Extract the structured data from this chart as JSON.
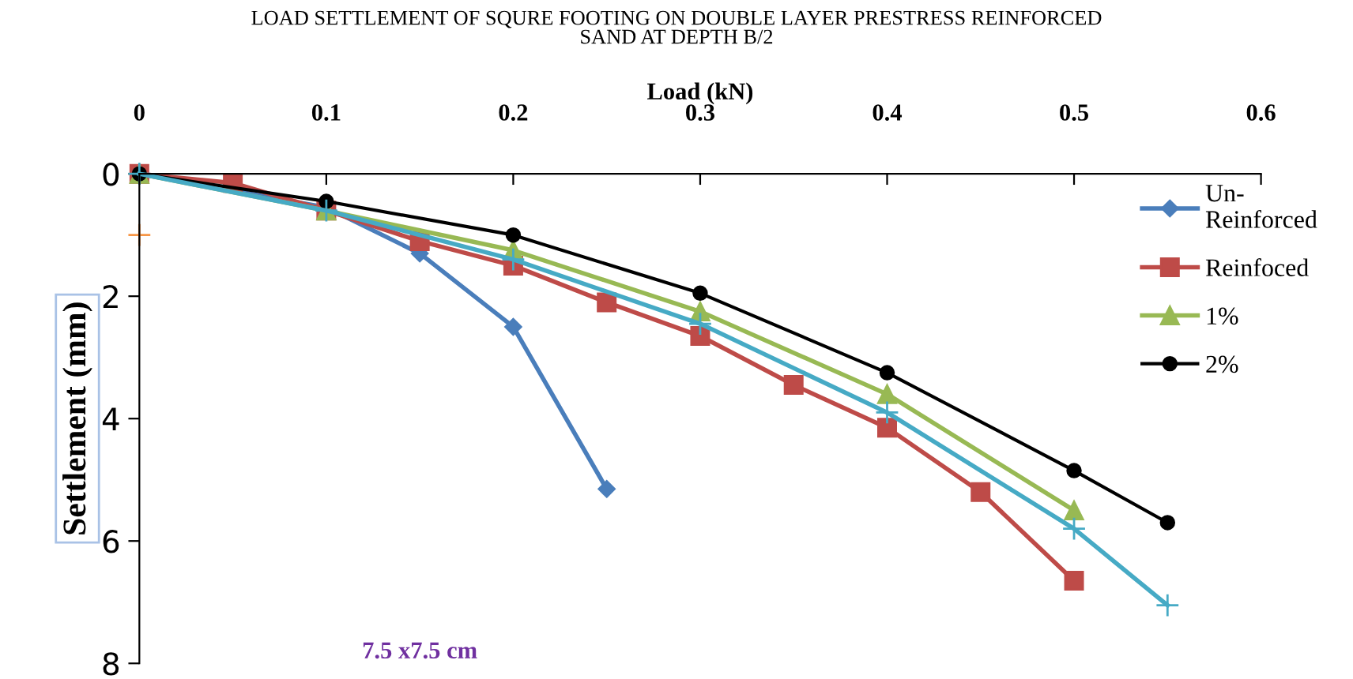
{
  "chart_data": {
    "type": "line",
    "title": "LOAD SETTLEMENT OF SQURE FOOTING ON DOUBLE LAYER PRESTRESS REINFORCED\nSAND AT DEPTH B/2",
    "xlabel": "Load (kN)",
    "ylabel": "Settlement (mm)",
    "xlim": [
      0,
      0.6
    ],
    "xticks": [
      0,
      0.1,
      0.2,
      0.3,
      0.4,
      0.5,
      0.6
    ],
    "ylim": [
      8,
      0
    ],
    "yticks": [
      0,
      2,
      4,
      6,
      8
    ],
    "grid": false,
    "legend": "right",
    "line_style": "solid",
    "annotations": [
      "7.5 x7.5 cm"
    ],
    "series": [
      {
        "name": "Un-\nReinforced",
        "color": "#4a7ebb",
        "marker": "diamond",
        "x": [
          0,
          0.1,
          0.15,
          0.2,
          0.25
        ],
        "values": [
          0,
          0.55,
          1.3,
          2.5,
          5.15
        ]
      },
      {
        "name": "Reinfoced",
        "color": "#be4b48",
        "marker": "square",
        "x": [
          0,
          0.05,
          0.1,
          0.15,
          0.2,
          0.25,
          0.3,
          0.35,
          0.4,
          0.45,
          0.5
        ],
        "values": [
          0,
          0.15,
          0.6,
          1.1,
          1.5,
          2.1,
          2.65,
          3.45,
          4.15,
          5.2,
          6.65
        ]
      },
      {
        "name": "1%",
        "color": "#98b954",
        "marker": "triangle",
        "x": [
          0,
          0.1,
          0.2,
          0.3,
          0.4,
          0.5
        ],
        "values": [
          0,
          0.6,
          1.25,
          2.25,
          3.6,
          5.5
        ]
      },
      {
        "name": "2%",
        "color": "#000000",
        "marker": "circle",
        "x": [
          0,
          0.1,
          0.2,
          0.3,
          0.4,
          0.5,
          0.55
        ],
        "values": [
          0,
          0.45,
          1.0,
          1.95,
          3.25,
          4.85,
          5.7
        ]
      },
      {
        "color": "#46aac5",
        "marker": "cross",
        "x": [
          0,
          0.1,
          0.2,
          0.3,
          0.4,
          0.5,
          0.55
        ],
        "values": [
          0,
          0.6,
          1.4,
          2.45,
          3.9,
          5.8,
          7.05
        ]
      },
      {
        "type": "scatter",
        "color": "#f79646",
        "marker": "cross",
        "x": [
          0
        ],
        "values": [
          1
        ]
      }
    ]
  }
}
